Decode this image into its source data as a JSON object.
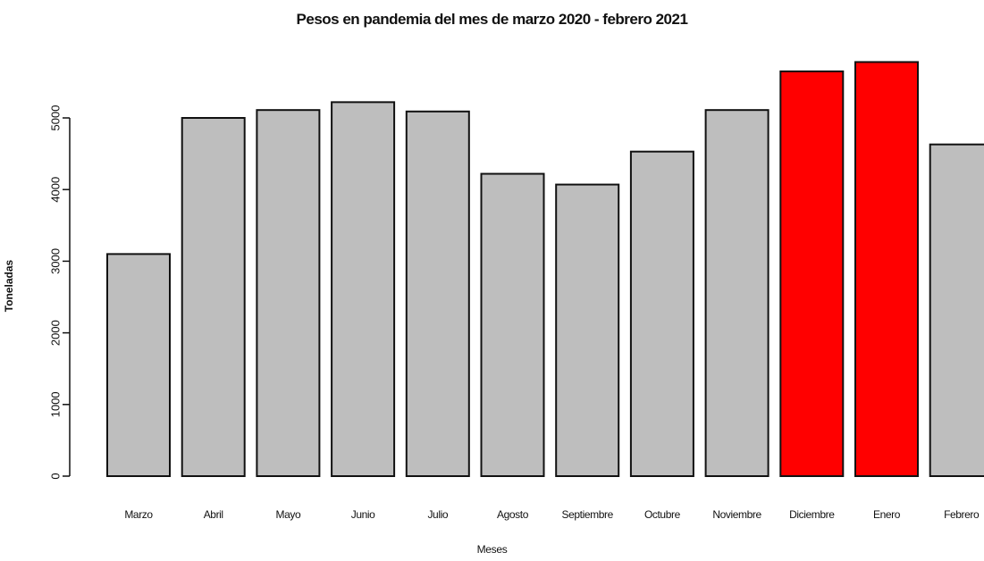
{
  "chart_data": {
    "type": "bar",
    "title": "Pesos en pandemia del mes de marzo 2020 - febrero 2021",
    "xlabel": "Meses",
    "ylabel": "Toneladas",
    "categories": [
      "Marzo",
      "Abril",
      "Mayo",
      "Junio",
      "Julio",
      "Agosto",
      "Septiembre",
      "Octubre",
      "Noviembre",
      "Diciembre",
      "Enero",
      "Febrero"
    ],
    "values": [
      3100,
      5000,
      5110,
      5220,
      5090,
      4220,
      4070,
      4530,
      5110,
      5650,
      5780,
      4630
    ],
    "bar_colors": [
      "#bebebe",
      "#bebebe",
      "#bebebe",
      "#bebebe",
      "#bebebe",
      "#bebebe",
      "#bebebe",
      "#bebebe",
      "#bebebe",
      "#ff0000",
      "#ff0000",
      "#bebebe"
    ],
    "yticks": [
      0,
      1000,
      2000,
      3000,
      4000,
      5000
    ],
    "ylim": [
      0,
      6000
    ],
    "grid": false,
    "legend": "none"
  }
}
